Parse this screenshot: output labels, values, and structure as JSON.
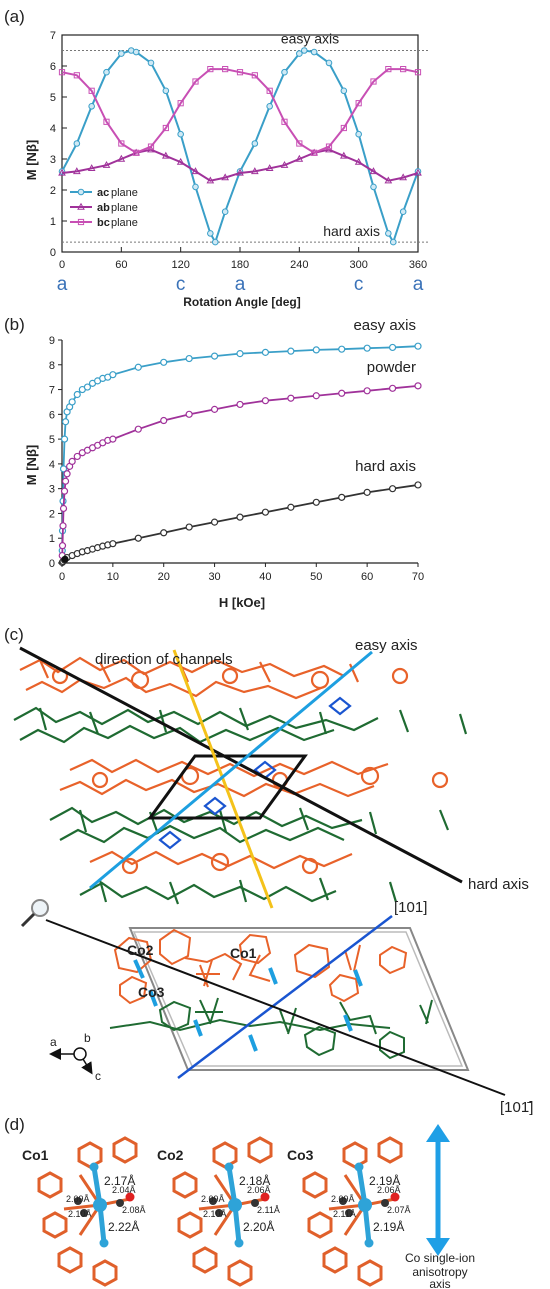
{
  "panel_labels": {
    "a": "(a)",
    "b": "(b)",
    "c": "(c)",
    "d": "(d)"
  },
  "chart_data": [
    {
      "type": "line",
      "panel": "(a)",
      "xlabel": "Rotation Angle [deg]",
      "ylabel": "M [Nβ]",
      "xlim": [
        0,
        360
      ],
      "ylim": [
        0,
        7
      ],
      "xticks": [
        0,
        60,
        120,
        180,
        240,
        300,
        360
      ],
      "yticks": [
        0,
        1,
        2,
        3,
        4,
        5,
        6,
        7
      ],
      "axis_letters": [
        {
          "x": 0,
          "label": "a"
        },
        {
          "x": 120,
          "label": "c"
        },
        {
          "x": 180,
          "label": "a"
        },
        {
          "x": 300,
          "label": "c"
        },
        {
          "x": 360,
          "label": "a"
        }
      ],
      "reference_lines": [
        {
          "y": 6.5,
          "label": "easy axis"
        },
        {
          "y": 0.32,
          "label": "hard axis"
        }
      ],
      "legend_placement": "bottom-left",
      "colors": {
        "ac": "#3a9fc8",
        "ab": "#a0329a",
        "bc": "#c84fb4"
      },
      "series": [
        {
          "name_bold": "ac",
          "name_rest": " plane",
          "marker": "circle",
          "key": "ac",
          "x": [
            0,
            15,
            30,
            45,
            60,
            70,
            75,
            90,
            105,
            120,
            135,
            150,
            155,
            165,
            180,
            195,
            210,
            225,
            240,
            245,
            255,
            270,
            285,
            300,
            315,
            330,
            335,
            345,
            360
          ],
          "y": [
            2.6,
            3.5,
            4.7,
            5.8,
            6.4,
            6.5,
            6.45,
            6.1,
            5.2,
            3.8,
            2.1,
            0.6,
            0.32,
            1.3,
            2.6,
            3.5,
            4.7,
            5.8,
            6.4,
            6.5,
            6.45,
            6.1,
            5.2,
            3.8,
            2.1,
            0.6,
            0.32,
            1.3,
            2.6
          ]
        },
        {
          "name_bold": "ab",
          "name_rest": " plane",
          "marker": "triangle",
          "key": "ab",
          "x": [
            0,
            15,
            30,
            45,
            60,
            75,
            90,
            105,
            120,
            135,
            150,
            165,
            180,
            195,
            210,
            225,
            240,
            255,
            270,
            285,
            300,
            315,
            330,
            345,
            360
          ],
          "y": [
            2.55,
            2.6,
            2.7,
            2.8,
            3.0,
            3.2,
            3.3,
            3.1,
            2.9,
            2.6,
            2.3,
            2.4,
            2.55,
            2.6,
            2.7,
            2.8,
            3.0,
            3.2,
            3.3,
            3.1,
            2.9,
            2.6,
            2.3,
            2.4,
            2.55
          ]
        },
        {
          "name_bold": "bc",
          "name_rest": " plane",
          "marker": "square",
          "key": "bc",
          "x": [
            0,
            15,
            30,
            45,
            60,
            75,
            90,
            105,
            120,
            135,
            150,
            165,
            180,
            195,
            210,
            225,
            240,
            255,
            270,
            285,
            300,
            315,
            330,
            345,
            360
          ],
          "y": [
            5.8,
            5.7,
            5.2,
            4.2,
            3.5,
            3.2,
            3.4,
            4.0,
            4.8,
            5.5,
            5.9,
            5.9,
            5.8,
            5.7,
            5.2,
            4.2,
            3.5,
            3.2,
            3.4,
            4.0,
            4.8,
            5.5,
            5.9,
            5.9,
            5.8
          ]
        }
      ]
    },
    {
      "type": "line",
      "panel": "(b)",
      "xlabel": "H [kOe]",
      "ylabel": "M [Nβ]",
      "xlim": [
        0,
        70
      ],
      "ylim": [
        0,
        9
      ],
      "xticks": [
        0,
        10,
        20,
        30,
        40,
        50,
        60,
        70
      ],
      "yticks": [
        0,
        1,
        2,
        3,
        4,
        5,
        6,
        7,
        8,
        9
      ],
      "colors": {
        "easy": "#3a9fc8",
        "powder": "#a0329a",
        "hard": "#333333"
      },
      "series": [
        {
          "name": "easy axis",
          "key": "easy",
          "x": [
            0.05,
            0.1,
            0.2,
            0.3,
            0.5,
            0.7,
            1,
            1.5,
            2,
            3,
            4,
            5,
            6,
            7,
            8,
            9,
            10,
            15,
            20,
            25,
            30,
            35,
            40,
            45,
            50,
            55,
            60,
            65,
            70
          ],
          "y": [
            0.5,
            1.3,
            2.5,
            3.8,
            5.0,
            5.7,
            6.1,
            6.3,
            6.5,
            6.8,
            7.0,
            7.1,
            7.25,
            7.35,
            7.45,
            7.5,
            7.6,
            7.9,
            8.1,
            8.25,
            8.35,
            8.45,
            8.5,
            8.55,
            8.6,
            8.63,
            8.67,
            8.7,
            8.75
          ]
        },
        {
          "name": "powder",
          "key": "powder",
          "x": [
            0.05,
            0.1,
            0.2,
            0.3,
            0.5,
            0.7,
            1,
            1.5,
            2,
            3,
            4,
            5,
            6,
            7,
            8,
            9,
            10,
            15,
            20,
            25,
            30,
            35,
            40,
            45,
            50,
            55,
            60,
            65,
            70
          ],
          "y": [
            0.3,
            0.7,
            1.5,
            2.2,
            2.9,
            3.3,
            3.6,
            3.9,
            4.1,
            4.3,
            4.45,
            4.55,
            4.65,
            4.75,
            4.85,
            4.95,
            5.0,
            5.4,
            5.75,
            6.0,
            6.2,
            6.4,
            6.55,
            6.65,
            6.75,
            6.85,
            6.95,
            7.05,
            7.15
          ]
        },
        {
          "name": "hard axis",
          "key": "hard",
          "x": [
            0.05,
            0.2,
            0.5,
            1,
            2,
            3,
            4,
            5,
            6,
            7,
            8,
            9,
            10,
            15,
            20,
            25,
            30,
            35,
            40,
            45,
            50,
            55,
            60,
            65,
            70
          ],
          "y": [
            0.02,
            0.06,
            0.12,
            0.22,
            0.3,
            0.38,
            0.45,
            0.5,
            0.56,
            0.62,
            0.68,
            0.73,
            0.78,
            1.0,
            1.22,
            1.45,
            1.65,
            1.85,
            2.05,
            2.25,
            2.45,
            2.65,
            2.85,
            3.0,
            3.15
          ]
        }
      ]
    }
  ],
  "panel_c": {
    "direction_of_channels": "direction of channels",
    "easy_axis": "easy axis",
    "hard_axis": "hard axis",
    "dir_101": "[101]",
    "dir_10m1": "[101̄]",
    "co1": "Co1",
    "co2": "Co2",
    "co3": "Co3",
    "axis_a": "a",
    "axis_b": "b",
    "axis_c": "c",
    "colors": {
      "orange": "#e8622a",
      "green": "#1f6b32",
      "blue": "#1a55d0",
      "cyan": "#1d9fe0",
      "yellow": "#f4c21a"
    }
  },
  "panel_d": {
    "centers": [
      {
        "name": "Co1",
        "bonds": [
          "2.17Å",
          "2.09Å",
          "2.04Å",
          "2.08Å",
          "2.10Å",
          "2.22Å"
        ]
      },
      {
        "name": "Co2",
        "bonds": [
          "2.18Å",
          "2.09Å",
          "2.06Å",
          "2.11Å",
          "2.10Å",
          "2.20Å"
        ]
      },
      {
        "name": "Co3",
        "bonds": [
          "2.19Å",
          "2.09Å",
          "2.06Å",
          "2.07Å",
          "2.11Å",
          "2.19Å"
        ]
      }
    ],
    "anisotropy_label": [
      "Co single-ion",
      "anisotropy",
      "axis"
    ],
    "colors": {
      "frame": "#e0602b",
      "atom": "#2ea3d8",
      "nitrogen": "#333333",
      "oxygen": "#e02020",
      "arrow": "#1f9fe6"
    }
  }
}
